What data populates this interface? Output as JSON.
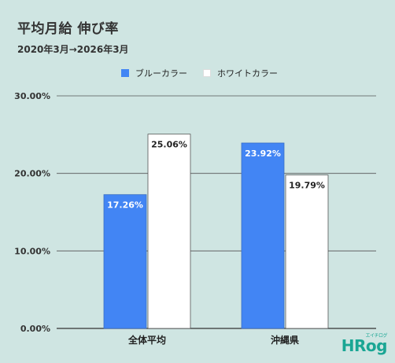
{
  "title": "平均月給 伸び率",
  "subtitle": "2020年3月→2026年3月",
  "colors": {
    "blue": "#4285f4",
    "white": "#ffffff",
    "background": "#cfe5e2"
  },
  "logo": {
    "text": "HRog",
    "sub": "エイチログ"
  },
  "chart_data": {
    "type": "bar",
    "categories": [
      "全体平均",
      "沖縄県"
    ],
    "series": [
      {
        "name": "ブルーカラー",
        "values": [
          17.26,
          23.92
        ],
        "labels": [
          "17.26%",
          "23.92%"
        ]
      },
      {
        "name": "ホワイトカラー",
        "values": [
          25.06,
          19.79
        ],
        "labels": [
          "25.06%",
          "19.79%"
        ]
      }
    ],
    "ylim": [
      0,
      30
    ],
    "yticks": [
      0,
      10,
      20,
      30
    ],
    "ytick_labels": [
      "0.00%",
      "10.00%",
      "20.00%",
      "30.00%"
    ],
    "grid": true,
    "legend": "top"
  }
}
